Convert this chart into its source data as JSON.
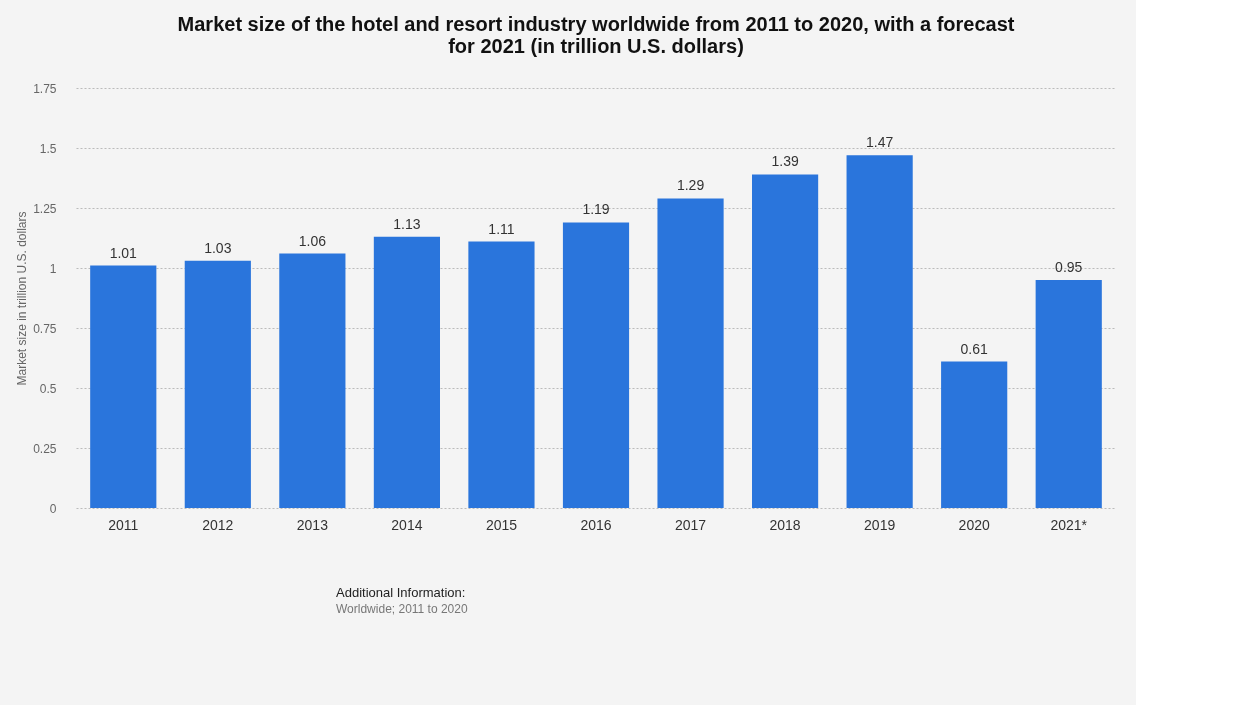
{
  "chart_data": {
    "type": "bar",
    "title": "Market size of the hotel and resort industry worldwide from 2011 to 2020, with a forecast for 2021 (in trillion U.S. dollars)",
    "ylabel": "Market size in trillion U.S. dollars",
    "categories": [
      "2011",
      "2012",
      "2013",
      "2014",
      "2015",
      "2016",
      "2017",
      "2018",
      "2019",
      "2020",
      "2021*"
    ],
    "values": [
      1.01,
      1.03,
      1.06,
      1.13,
      1.11,
      1.19,
      1.29,
      1.39,
      1.47,
      0.61,
      0.95
    ],
    "color": "#2a75dc",
    "ylim": [
      0,
      1.75
    ],
    "yticks": [
      0,
      0.25,
      0.5,
      0.75,
      1,
      1.25,
      1.5,
      1.75
    ],
    "grid": "y",
    "data_labels": true,
    "annotations": [
      "Additional Information:",
      "Worldwide; 2011 to 2020"
    ]
  }
}
